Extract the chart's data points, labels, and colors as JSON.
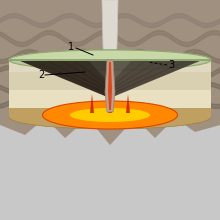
{
  "fig_width": 2.2,
  "fig_height": 2.2,
  "dpi": 100,
  "bg_color": "#c8c8c8",
  "ash_plume_color": "#a09080",
  "ash_plume_wave_color": "#706858",
  "volcano_green_rim": "#b8c8a0",
  "volcano_dark_layers": "#504840",
  "cream_layer": "#e8e0c0",
  "magma_orange": "#ff8800",
  "magma_red": "#cc2200",
  "magma_bright": "#ffcc00",
  "base_brown": "#c0a060",
  "conduit_color": "#c0a090",
  "label_color": "#000000",
  "label_fontsize": 7
}
